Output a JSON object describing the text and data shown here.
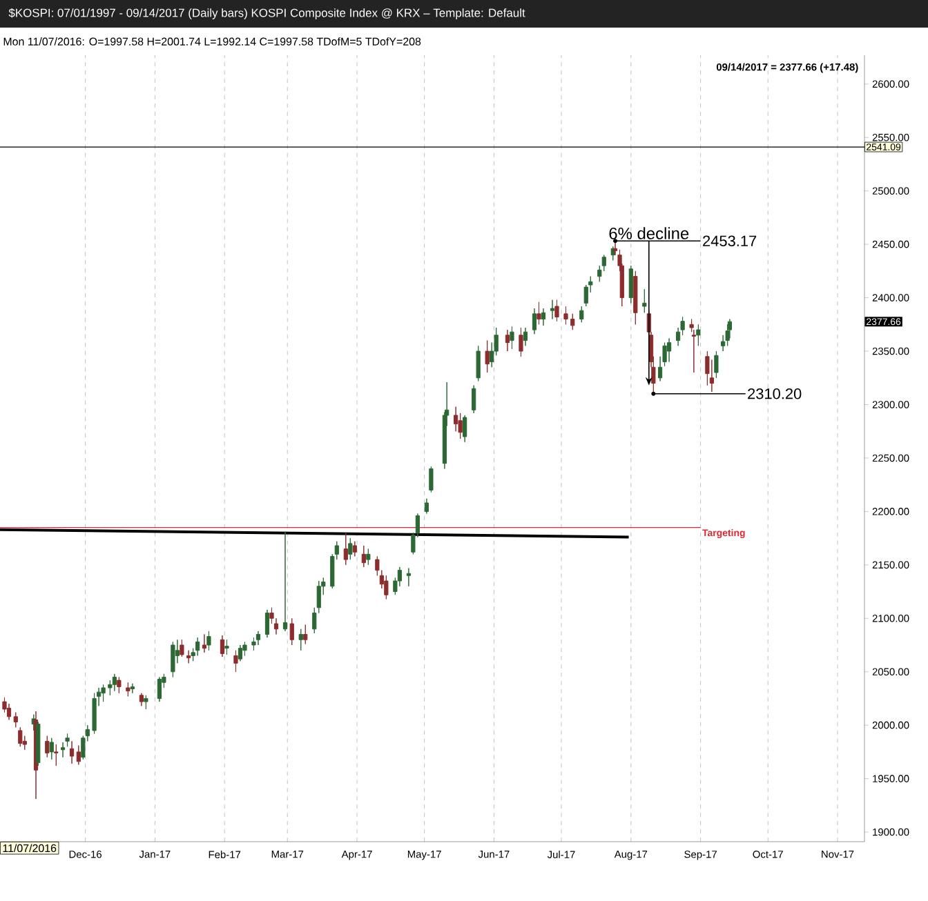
{
  "chart_data": {
    "type": "candlestick",
    "title": "$KOSPI:  07/01/1997 - 09/14/2017  (Daily bars)   KOSPI Composite Index @ KRX  –  Template: Default",
    "subtitle": "Mon  11/07/2016:  O=1997.58  H=2001.74  L=1992.14  C=1997.58  TDofM=5  TDofY=208",
    "x": [
      "2016-10-26",
      "2016-10-28",
      "2016-10-31",
      "2016-11-02",
      "2016-11-04",
      "2016-11-08",
      "2016-11-09",
      "2016-11-10",
      "2016-11-14",
      "2016-11-16",
      "2016-11-18",
      "2016-11-21",
      "2016-11-23",
      "2016-11-25",
      "2016-11-28",
      "2016-11-30",
      "2016-12-02",
      "2016-12-05",
      "2016-12-07",
      "2016-12-09",
      "2016-12-12",
      "2016-12-14",
      "2016-12-16",
      "2016-12-20",
      "2016-12-22",
      "2016-12-26",
      "2016-12-28",
      "2017-01-03",
      "2017-01-05",
      "2017-01-09",
      "2017-01-11",
      "2017-01-13",
      "2017-01-16",
      "2017-01-18",
      "2017-01-20",
      "2017-01-23",
      "2017-01-25",
      "2017-01-31",
      "2017-02-02",
      "2017-02-06",
      "2017-02-08",
      "2017-02-10",
      "2017-02-14",
      "2017-02-16",
      "2017-02-20",
      "2017-02-22",
      "2017-02-24",
      "2017-02-28",
      "2017-03-03",
      "2017-03-07",
      "2017-03-09",
      "2017-03-13",
      "2017-03-15",
      "2017-03-17",
      "2017-03-21",
      "2017-03-23",
      "2017-03-27",
      "2017-03-29",
      "2017-03-31",
      "2017-04-04",
      "2017-04-06",
      "2017-04-10",
      "2017-04-12",
      "2017-04-14",
      "2017-04-18",
      "2017-04-20",
      "2017-04-24",
      "2017-04-26",
      "2017-04-28",
      "2017-05-02",
      "2017-05-04",
      "2017-05-10",
      "2017-05-11",
      "2017-05-15",
      "2017-05-17",
      "2017-05-19",
      "2017-05-23",
      "2017-05-25",
      "2017-05-29",
      "2017-05-31",
      "2017-06-02",
      "2017-06-07",
      "2017-06-09",
      "2017-06-13",
      "2017-06-15",
      "2017-06-19",
      "2017-06-21",
      "2017-06-23",
      "2017-06-27",
      "2017-06-29",
      "2017-07-03",
      "2017-07-06",
      "2017-07-10",
      "2017-07-12",
      "2017-07-14",
      "2017-07-18",
      "2017-07-20",
      "2017-07-24",
      "2017-07-25",
      "2017-07-27",
      "2017-07-28",
      "2017-08-01",
      "2017-08-03",
      "2017-08-07",
      "2017-08-09",
      "2017-08-10",
      "2017-08-11",
      "2017-08-14",
      "2017-08-16",
      "2017-08-18",
      "2017-08-22",
      "2017-08-24",
      "2017-08-28",
      "2017-08-29",
      "2017-08-31",
      "2017-09-04",
      "2017-09-06",
      "2017-09-08",
      "2017-09-11",
      "2017-09-13",
      "2017-09-14"
    ],
    "ohlc": [
      [
        2022,
        2026,
        2012,
        2015
      ],
      [
        2016,
        2020,
        2005,
        2008
      ],
      [
        2008,
        2012,
        1998,
        2003
      ],
      [
        1995,
        1998,
        1980,
        1983
      ],
      [
        1985,
        1990,
        1977,
        1982
      ],
      [
        2001,
        2010,
        1995,
        2006
      ],
      [
        2005,
        2013,
        1931,
        1958
      ],
      [
        1965,
        2003,
        1962,
        2001
      ],
      [
        1985,
        1990,
        1970,
        1974
      ],
      [
        1975,
        1988,
        1968,
        1984
      ],
      [
        1975,
        1982,
        1962,
        1974
      ],
      [
        1977,
        1984,
        1970,
        1979
      ],
      [
        1985,
        1992,
        1980,
        1988
      ],
      [
        1978,
        1985,
        1964,
        1971
      ],
      [
        1975,
        1981,
        1963,
        1966
      ],
      [
        1970,
        1990,
        1968,
        1988
      ],
      [
        1990,
        2000,
        1985,
        1996
      ],
      [
        1995,
        2030,
        1992,
        2025
      ],
      [
        2027,
        2035,
        2018,
        2031
      ],
      [
        2030,
        2038,
        2022,
        2035
      ],
      [
        2035,
        2042,
        2028,
        2038
      ],
      [
        2038,
        2048,
        2032,
        2045
      ],
      [
        2042,
        2045,
        2030,
        2036
      ],
      [
        2035,
        2040,
        2027,
        2032
      ],
      [
        2034,
        2039,
        2030,
        2036
      ],
      [
        2028,
        2030,
        2018,
        2022
      ],
      [
        2022,
        2028,
        2015,
        2025
      ],
      [
        2025,
        2045,
        2022,
        2043
      ],
      [
        2040,
        2048,
        2035,
        2045
      ],
      [
        2050,
        2078,
        2045,
        2075
      ],
      [
        2065,
        2080,
        2058,
        2070
      ],
      [
        2075,
        2080,
        2064,
        2066
      ],
      [
        2065,
        2070,
        2058,
        2063
      ],
      [
        2065,
        2072,
        2060,
        2068
      ],
      [
        2070,
        2082,
        2065,
        2078
      ],
      [
        2075,
        2085,
        2068,
        2072
      ],
      [
        2075,
        2088,
        2070,
        2083
      ],
      [
        2080,
        2084,
        2064,
        2067
      ],
      [
        2072,
        2080,
        2066,
        2074
      ],
      [
        2065,
        2070,
        2050,
        2058
      ],
      [
        2062,
        2075,
        2060,
        2072
      ],
      [
        2070,
        2078,
        2065,
        2075
      ],
      [
        2075,
        2082,
        2070,
        2078
      ],
      [
        2080,
        2088,
        2075,
        2085
      ],
      [
        2085,
        2108,
        2082,
        2105
      ],
      [
        2105,
        2110,
        2095,
        2100
      ],
      [
        2095,
        2100,
        2085,
        2090
      ],
      [
        2090,
        2181,
        2088,
        2096
      ],
      [
        2095,
        2100,
        2075,
        2080
      ],
      [
        2080,
        2090,
        2070,
        2085
      ],
      [
        2085,
        2094,
        2076,
        2080
      ],
      [
        2090,
        2110,
        2086,
        2105
      ],
      [
        2110,
        2135,
        2105,
        2130
      ],
      [
        2130,
        2138,
        2122,
        2134
      ],
      [
        2130,
        2160,
        2128,
        2158
      ],
      [
        2160,
        2172,
        2155,
        2168
      ],
      [
        2165,
        2180,
        2150,
        2155
      ],
      [
        2160,
        2175,
        2155,
        2170
      ],
      [
        2168,
        2172,
        2158,
        2162
      ],
      [
        2160,
        2168,
        2148,
        2152
      ],
      [
        2155,
        2165,
        2150,
        2160
      ],
      [
        2155,
        2158,
        2140,
        2145
      ],
      [
        2140,
        2145,
        2128,
        2132
      ],
      [
        2135,
        2140,
        2118,
        2122
      ],
      [
        2125,
        2138,
        2122,
        2135
      ],
      [
        2135,
        2148,
        2130,
        2145
      ],
      [
        2140,
        2147,
        2130,
        2142
      ],
      [
        2162,
        2180,
        2160,
        2178
      ],
      [
        2180,
        2198,
        2176,
        2196
      ],
      [
        2200,
        2212,
        2198,
        2208
      ],
      [
        2220,
        2242,
        2218,
        2240
      ],
      [
        2245,
        2293,
        2240,
        2290
      ],
      [
        2290,
        2321,
        2280,
        2295
      ],
      [
        2290,
        2298,
        2275,
        2282
      ],
      [
        2285,
        2292,
        2268,
        2274
      ],
      [
        2270,
        2290,
        2265,
        2288
      ],
      [
        2295,
        2318,
        2292,
        2315
      ],
      [
        2325,
        2355,
        2322,
        2350
      ],
      [
        2350,
        2360,
        2330,
        2338
      ],
      [
        2340,
        2358,
        2335,
        2350
      ],
      [
        2350,
        2372,
        2346,
        2365
      ],
      [
        2365,
        2370,
        2350,
        2358
      ],
      [
        2360,
        2373,
        2352,
        2368
      ],
      [
        2365,
        2372,
        2345,
        2350
      ],
      [
        2360,
        2372,
        2355,
        2368
      ],
      [
        2370,
        2390,
        2366,
        2385
      ],
      [
        2385,
        2396,
        2375,
        2380
      ],
      [
        2380,
        2390,
        2374,
        2386
      ],
      [
        2388,
        2398,
        2380,
        2390
      ],
      [
        2392,
        2398,
        2378,
        2382
      ],
      [
        2385,
        2392,
        2375,
        2380
      ],
      [
        2380,
        2385,
        2370,
        2374
      ],
      [
        2380,
        2392,
        2377,
        2388
      ],
      [
        2395,
        2412,
        2392,
        2410
      ],
      [
        2412,
        2420,
        2405,
        2415
      ],
      [
        2420,
        2430,
        2415,
        2426
      ],
      [
        2430,
        2440,
        2425,
        2438
      ],
      [
        2440,
        2448,
        2435,
        2446
      ],
      [
        2446,
        2453.17,
        2440,
        2444
      ],
      [
        2440,
        2445,
        2425,
        2430
      ],
      [
        2430,
        2432,
        2392,
        2400
      ],
      [
        2400,
        2430,
        2395,
        2427
      ],
      [
        2420,
        2425,
        2375,
        2386
      ],
      [
        2392,
        2408,
        2386,
        2395
      ],
      [
        2385,
        2388,
        2365,
        2368
      ],
      [
        2365,
        2368,
        2335,
        2340
      ],
      [
        2335,
        2345,
        2310.2,
        2320
      ],
      [
        2325,
        2345,
        2322,
        2335
      ],
      [
        2340,
        2358,
        2336,
        2355
      ],
      [
        2350,
        2362,
        2340,
        2358
      ],
      [
        2360,
        2372,
        2355,
        2368
      ],
      [
        2370,
        2382,
        2365,
        2378
      ],
      [
        2375,
        2380,
        2368,
        2372
      ],
      [
        2365,
        2370,
        2330,
        2364
      ],
      [
        2365,
        2375,
        2355,
        2370
      ],
      [
        2345,
        2350,
        2318,
        2329
      ],
      [
        2325,
        2342,
        2312,
        2320
      ],
      [
        2330,
        2350,
        2325,
        2346
      ],
      [
        2355,
        2365,
        2350,
        2359
      ],
      [
        2360,
        2375,
        2355,
        2369
      ],
      [
        2370,
        2380,
        2362,
        2377.66
      ]
    ],
    "series": [
      {
        "type": "line",
        "name": "Targeting",
        "color": "#e0262e",
        "x": [
          "2016-10-24",
          "2017-09-01"
        ],
        "values": [
          2185,
          2185
        ]
      },
      {
        "type": "line",
        "color": "#000000",
        "x": [
          "2016-10-24",
          "2017-07-31"
        ],
        "values": [
          2183,
          2176
        ]
      }
    ],
    "ref_lines": [
      {
        "axis": "y",
        "value": 2541.09,
        "label": "2541.09",
        "color": "#000000"
      }
    ],
    "annotations": [
      "09/14/2017 = 2377.66 (+17.48)",
      "11/07/2016",
      "2377.66",
      {
        "text": "6% decline",
        "x": "2017-08-09",
        "y": 2318
      },
      {
        "text": "2453.17",
        "x": "2017-07-25",
        "y": 2453.17
      },
      {
        "text": "2310.20",
        "x": "2017-08-11",
        "y": 2310.2
      }
    ],
    "xlim": [
      "2016-10-24",
      "2017-11-13"
    ],
    "ylim": [
      1891,
      2627
    ],
    "xticks": [
      {
        "value": "2016-12-01",
        "label": "Dec-16"
      },
      {
        "value": "2017-01-01",
        "label": "Jan-17"
      },
      {
        "value": "2017-02-01",
        "label": "Feb-17"
      },
      {
        "value": "2017-03-01",
        "label": "Mar-17"
      },
      {
        "value": "2017-04-01",
        "label": "Apr-17"
      },
      {
        "value": "2017-05-01",
        "label": "May-17"
      },
      {
        "value": "2017-06-01",
        "label": "Jun-17"
      },
      {
        "value": "2017-07-01",
        "label": "Jul-17"
      },
      {
        "value": "2017-08-01",
        "label": "Aug-17"
      },
      {
        "value": "2017-09-01",
        "label": "Sep-17"
      },
      {
        "value": "2017-10-01",
        "label": "Oct-17"
      },
      {
        "value": "2017-11-01",
        "label": "Nov-17"
      }
    ],
    "yticks": [
      {
        "value": 1900,
        "label": "1900.00"
      },
      {
        "value": 1950,
        "label": "1950.00"
      },
      {
        "value": 2000,
        "label": "2000.00"
      },
      {
        "value": 2050,
        "label": "2050.00"
      },
      {
        "value": 2100,
        "label": "2100.00"
      },
      {
        "value": 2150,
        "label": "2150.00"
      },
      {
        "value": 2200,
        "label": "2200.00"
      },
      {
        "value": 2250,
        "label": "2250.00"
      },
      {
        "value": 2300,
        "label": "2300.00"
      },
      {
        "value": 2350,
        "label": "2350.00"
      },
      {
        "value": 2400,
        "label": "2400.00"
      },
      {
        "value": 2450,
        "label": "2450.00"
      },
      {
        "value": 2500,
        "label": "2500.00"
      },
      {
        "value": 2550,
        "label": "2550.00"
      },
      {
        "value": 2600,
        "label": "2600.00"
      }
    ],
    "grid": "x"
  }
}
